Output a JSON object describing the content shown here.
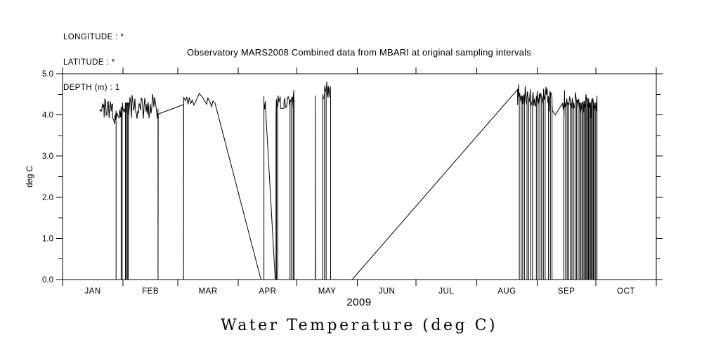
{
  "header": {
    "line1": "LONGITUDE : *",
    "line2": "LATITUDE : *",
    "line3": "DEPTH (m) : 1"
  },
  "title": "Observatory MARS2008 Combined data from MBARI at original sampling intervals",
  "year_label": "2009",
  "bottom_title": "Water Temperature (deg C)",
  "colors": {
    "fg": "#000000",
    "bg": "#ffffff"
  },
  "chart_data": {
    "type": "line",
    "title": "Observatory MARS2008 Combined data from MBARI at original sampling intervals",
    "xlabel": "2009",
    "ylabel": "deg C",
    "series_name": "Water Temperature (deg C)",
    "legend": "none",
    "grid": false,
    "ylim": [
      0.0,
      5.0
    ],
    "ytick_major": [
      0,
      1,
      2,
      3,
      4,
      5
    ],
    "ytick_labels": [
      "0.0",
      "1.0",
      "2.0",
      "3.0",
      "4.0",
      "5.0"
    ],
    "ytick_minor_step": 0.5,
    "x_months": [
      "JAN",
      "FEB",
      "MAR",
      "APR",
      "MAY",
      "JUN",
      "JUL",
      "AUG",
      "SEP",
      "OCT"
    ],
    "month_boundaries_days": [
      0,
      31,
      59,
      90,
      120,
      151,
      181,
      212,
      243,
      273,
      304
    ],
    "total_days": 304,
    "segments": [
      {
        "type": "gap"
      },
      {
        "type": "noise",
        "d1": 19.0,
        "d2": 21.3,
        "base": 4.18,
        "amp": 0.1
      },
      {
        "type": "noise",
        "d1": 21.3,
        "d2": 25.6,
        "base": 4.15,
        "amp": 0.26
      },
      {
        "type": "points",
        "pts": [
          [
            25.6,
            3.95
          ],
          [
            26.8,
            3.78
          ]
        ]
      },
      {
        "type": "noise",
        "d1": 26.8,
        "d2": 30.6,
        "base": 4.02,
        "amp": 0.13,
        "dropouts": [
          [
            27.4,
            4.1
          ],
          [
            30.0,
            4.2
          ],
          [
            30.55,
            4.2
          ]
        ]
      },
      {
        "type": "noise",
        "d1": 30.6,
        "d2": 33.8,
        "base": 4.15,
        "amp": 0.18,
        "dropouts": [
          [
            32.2,
            4.3
          ],
          [
            32.7,
            4.3
          ],
          [
            33.2,
            4.3
          ],
          [
            33.7,
            4.3
          ]
        ]
      },
      {
        "type": "noise",
        "d1": 33.8,
        "d2": 48.8,
        "base": 4.17,
        "amp": 0.27
      },
      {
        "type": "points",
        "pts": [
          [
            48.9,
            4.15
          ],
          [
            48.9,
            0.0
          ],
          [
            49.0,
            4.02
          ],
          [
            61.9,
            4.25
          ],
          [
            61.95,
            0.0
          ],
          [
            62.0,
            4.43
          ],
          [
            63.0,
            4.34
          ],
          [
            63.6,
            4.44
          ],
          [
            64.3,
            4.26
          ],
          [
            64.9,
            4.42
          ],
          [
            65.7,
            4.28
          ],
          [
            66.4,
            4.36
          ],
          [
            67.2,
            4.24
          ],
          [
            68.2,
            4.33
          ],
          [
            70.0,
            4.52
          ],
          [
            71.5,
            4.44
          ],
          [
            73.8,
            4.26
          ],
          [
            74.4,
            4.41
          ],
          [
            75.6,
            4.3
          ],
          [
            76.3,
            4.2
          ],
          [
            77.0,
            4.34
          ],
          [
            78.1,
            4.28
          ],
          [
            101.6,
            0.0
          ],
          [
            103.1,
            0.0
          ],
          [
            103.1,
            4.45
          ]
        ]
      },
      {
        "type": "noise",
        "d1": 103.1,
        "d2": 103.9,
        "base": 4.3,
        "amp": 0.17
      },
      {
        "type": "points",
        "pts": [
          [
            103.9,
            4.2
          ],
          [
            108.9,
            0.0
          ],
          [
            109.3,
            0.0
          ]
        ]
      },
      {
        "type": "noise",
        "d1": 109.3,
        "d2": 111.6,
        "base": 4.28,
        "amp": 0.2,
        "dropouts": [
          [
            109.5,
            4.38
          ],
          [
            110.15,
            4.32
          ]
        ]
      },
      {
        "type": "points",
        "pts": [
          [
            111.6,
            4.16
          ],
          [
            113.4,
            4.16
          ]
        ]
      },
      {
        "type": "noise",
        "d1": 113.4,
        "d2": 118.5,
        "base": 4.3,
        "amp": 0.22,
        "dropouts": [
          [
            116.5,
            4.35
          ],
          [
            117.3,
            4.38
          ],
          [
            118.1,
            4.42
          ]
        ],
        "spikes": [
          [
            118.4,
            4.6
          ]
        ]
      },
      {
        "type": "points",
        "pts": [
          [
            118.55,
            4.4
          ],
          [
            118.55,
            0.0
          ]
        ]
      },
      {
        "type": "gap"
      },
      {
        "type": "points",
        "pts": [
          [
            129.4,
            0.0
          ],
          [
            129.4,
            4.47
          ],
          [
            129.5,
            0.0
          ]
        ]
      },
      {
        "type": "gap"
      },
      {
        "type": "points",
        "pts": [
          [
            133.2,
            0.0
          ],
          [
            133.2,
            4.5
          ]
        ]
      },
      {
        "type": "noise",
        "d1": 133.2,
        "d2": 137.2,
        "base": 4.55,
        "amp": 0.17,
        "dropouts": [
          [
            134.1,
            4.55
          ],
          [
            135.0,
            4.6
          ]
        ],
        "spikes": [
          [
            135.3,
            4.81
          ]
        ]
      },
      {
        "type": "points",
        "pts": [
          [
            137.25,
            4.45
          ],
          [
            137.25,
            0.0
          ]
        ]
      },
      {
        "type": "gap"
      },
      {
        "type": "points",
        "pts": [
          [
            148.3,
            0.0
          ],
          [
            233.0,
            4.62
          ]
        ]
      },
      {
        "type": "noise",
        "d1": 233.0,
        "d2": 250.8,
        "base": 4.42,
        "amp": 0.22,
        "dropouts": [
          [
            233.9,
            4.45
          ],
          [
            234.8,
            4.45
          ],
          [
            235.6,
            4.45
          ],
          [
            236.5,
            4.4
          ],
          [
            237.8,
            4.45
          ],
          [
            238.7,
            4.4
          ],
          [
            239.6,
            4.45
          ],
          [
            240.6,
            4.4
          ],
          [
            242.6,
            4.45
          ],
          [
            243.5,
            4.4
          ],
          [
            244.4,
            4.45
          ],
          [
            245.3,
            4.4
          ],
          [
            246.2,
            4.45
          ],
          [
            247.1,
            4.4
          ],
          [
            248.8,
            4.45
          ],
          [
            249.8,
            4.4
          ],
          [
            250.6,
            4.4
          ]
        ],
        "spikes": [
          [
            233.5,
            4.74
          ],
          [
            236.9,
            4.7
          ],
          [
            247.5,
            4.68
          ]
        ]
      },
      {
        "type": "points",
        "pts": [
          [
            250.8,
            4.1
          ],
          [
            252.3,
            4.0
          ],
          [
            255.9,
            4.28
          ]
        ]
      },
      {
        "type": "noise",
        "d1": 256.0,
        "d2": 273.6,
        "base": 4.25,
        "amp": 0.2,
        "dropouts": [
          [
            256.7,
            4.3
          ],
          [
            257.6,
            4.3
          ],
          [
            258.4,
            4.3
          ],
          [
            259.2,
            4.3
          ],
          [
            260.0,
            4.3
          ],
          [
            260.8,
            4.3
          ],
          [
            261.6,
            4.3
          ],
          [
            262.4,
            4.3
          ],
          [
            263.2,
            4.3
          ],
          [
            264.0,
            4.3
          ],
          [
            264.8,
            4.3
          ],
          [
            265.4,
            4.3
          ],
          [
            266.0,
            4.3
          ],
          [
            266.6,
            4.3
          ],
          [
            267.2,
            4.3
          ],
          [
            267.8,
            4.3
          ],
          [
            268.3,
            4.3
          ],
          [
            268.8,
            4.3
          ],
          [
            269.3,
            4.3
          ],
          [
            269.8,
            4.3
          ],
          [
            270.3,
            4.3
          ],
          [
            270.8,
            4.3
          ],
          [
            271.3,
            4.3
          ],
          [
            271.8,
            4.3
          ],
          [
            272.4,
            4.3
          ],
          [
            273.0,
            4.3
          ]
        ],
        "spikes": [
          [
            257.0,
            4.6
          ],
          [
            262.5,
            4.55
          ],
          [
            268.0,
            4.5
          ]
        ]
      },
      {
        "type": "points",
        "pts": [
          [
            273.65,
            4.2
          ],
          [
            273.65,
            0.0
          ]
        ]
      }
    ]
  }
}
